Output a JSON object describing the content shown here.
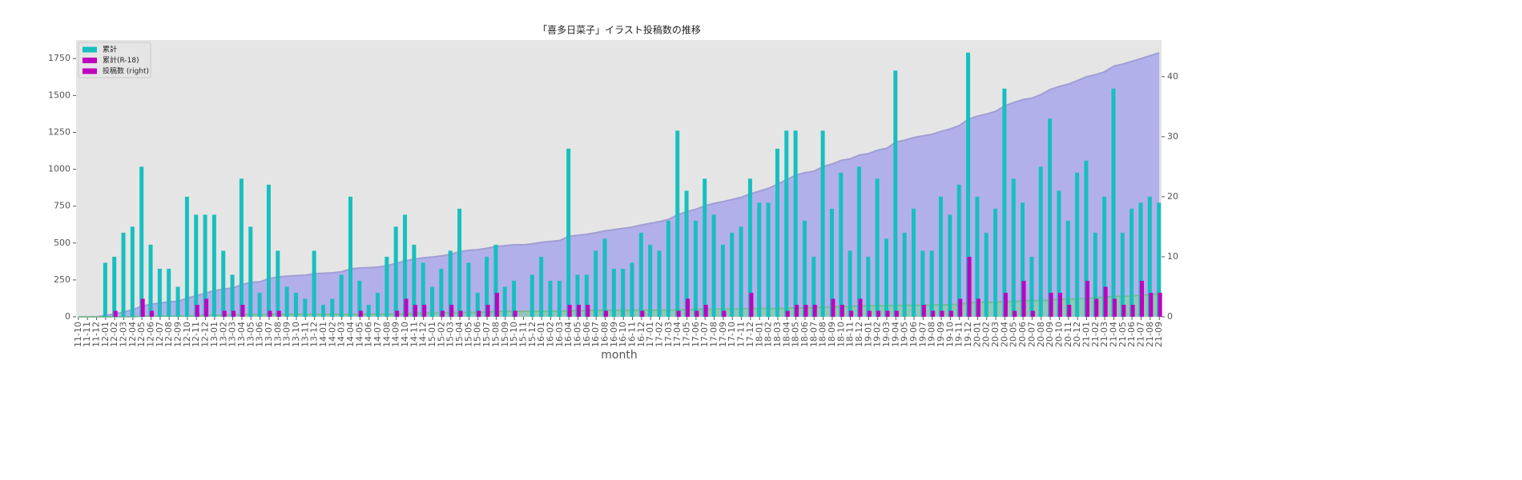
{
  "chart_data": {
    "type": "bar",
    "title": "「喜多日菜子」イラスト投稿数の推移",
    "x_label": "month",
    "categories": [
      "11-10",
      "11-11",
      "11-12",
      "12-01",
      "12-02",
      "12-03",
      "12-04",
      "12-05",
      "12-06",
      "12-07",
      "12-08",
      "12-09",
      "12-10",
      "12-11",
      "12-12",
      "13-01",
      "13-02",
      "13-03",
      "13-04",
      "13-05",
      "13-06",
      "13-07",
      "13-08",
      "13-09",
      "13-10",
      "13-11",
      "13-12",
      "14-01",
      "14-02",
      "14-03",
      "14-04",
      "14-05",
      "14-06",
      "14-07",
      "14-08",
      "14-09",
      "14-10",
      "14-11",
      "14-12",
      "15-01",
      "15-02",
      "15-03",
      "15-04",
      "15-05",
      "15-06",
      "15-07",
      "15-08",
      "15-09",
      "15-10",
      "15-11",
      "15-12",
      "16-01",
      "16-02",
      "16-03",
      "16-04",
      "16-05",
      "16-06",
      "16-07",
      "16-08",
      "16-09",
      "16-10",
      "16-11",
      "16-12",
      "17-01",
      "17-02",
      "17-03",
      "17-04",
      "17-05",
      "17-06",
      "17-07",
      "17-08",
      "17-09",
      "17-10",
      "17-11",
      "17-12",
      "18-01",
      "18-02",
      "18-03",
      "18-04",
      "18-05",
      "18-06",
      "18-07",
      "18-08",
      "18-09",
      "18-10",
      "18-11",
      "18-12",
      "19-01",
      "19-02",
      "19-03",
      "19-04",
      "19-05",
      "19-06",
      "19-07",
      "19-08",
      "19-09",
      "19-10",
      "19-11",
      "19-12",
      "20-01",
      "20-02",
      "20-03",
      "20-04",
      "20-05",
      "20-06",
      "20-07",
      "20-08",
      "20-09",
      "20-10",
      "20-11",
      "20-12",
      "21-01",
      "21-02",
      "21-03",
      "21-04",
      "21-05",
      "21-06",
      "21-07",
      "21-08",
      "21-09"
    ],
    "series": [
      {
        "kind": "area",
        "axis": "y",
        "color": "#b2b0ea",
        "values": [
          0,
          0,
          0,
          9,
          19,
          33,
          48,
          73,
          85,
          93,
          101,
          106,
          126,
          143,
          160,
          177,
          188,
          195,
          218,
          233,
          237,
          259,
          270,
          275,
          279,
          282,
          293,
          295,
          298,
          305,
          325,
          331,
          333,
          337,
          347,
          362,
          379,
          391,
          400,
          405,
          413,
          424,
          442,
          451,
          455,
          465,
          477,
          482,
          488,
          488,
          495,
          505,
          511,
          517,
          545,
          552,
          559,
          570,
          583,
          591,
          599,
          608,
          622,
          634,
          645,
          661,
          692,
          713,
          729,
          752,
          769,
          781,
          795,
          810,
          833,
          852,
          871,
          899,
          930,
          961,
          977,
          987,
          1018,
          1036,
          1060,
          1071,
          1096,
          1106,
          1129,
          1142,
          1183,
          1197,
          1215,
          1226,
          1237,
          1257,
          1274,
          1296,
          1340,
          1360,
          1374,
          1392,
          1430,
          1453,
          1472,
          1482,
          1507,
          1540,
          1561,
          1577,
          1601,
          1627,
          1641,
          1661,
          1699,
          1713,
          1731,
          1750,
          1770,
          1789
        ]
      },
      {
        "kind": "area",
        "axis": "y",
        "color": "#8ccfa4",
        "values": [
          0,
          0,
          0,
          0,
          1,
          1,
          1,
          4,
          5,
          5,
          5,
          5,
          5,
          7,
          10,
          10,
          11,
          12,
          14,
          14,
          14,
          15,
          16,
          16,
          16,
          16,
          16,
          16,
          16,
          16,
          16,
          17,
          17,
          17,
          17,
          18,
          21,
          23,
          25,
          25,
          26,
          28,
          29,
          29,
          30,
          32,
          36,
          36,
          37,
          37,
          37,
          37,
          37,
          37,
          39,
          41,
          43,
          43,
          44,
          44,
          44,
          44,
          45,
          45,
          45,
          45,
          46,
          49,
          50,
          52,
          52,
          53,
          53,
          53,
          57,
          57,
          57,
          57,
          58,
          60,
          62,
          64,
          64,
          67,
          69,
          70,
          73,
          74,
          75,
          76,
          77,
          77,
          77,
          79,
          80,
          81,
          82,
          85,
          95,
          98,
          98,
          98,
          102,
          103,
          109,
          110,
          110,
          114,
          118,
          120,
          120,
          126,
          129,
          134,
          137,
          139,
          141,
          147,
          151,
          155
        ]
      },
      {
        "kind": "bar",
        "axis": "y2",
        "color": "#17bfbf",
        "values": [
          0,
          0,
          0,
          9,
          10,
          14,
          15,
          25,
          12,
          8,
          8,
          5,
          20,
          17,
          17,
          17,
          11,
          7,
          23,
          15,
          4,
          22,
          11,
          5,
          4,
          3,
          11,
          2,
          3,
          7,
          20,
          6,
          2,
          4,
          10,
          15,
          17,
          12,
          9,
          5,
          8,
          11,
          18,
          9,
          4,
          10,
          12,
          5,
          6,
          0,
          7,
          10,
          6,
          6,
          28,
          7,
          7,
          11,
          13,
          8,
          8,
          9,
          14,
          12,
          11,
          16,
          31,
          21,
          16,
          23,
          17,
          12,
          14,
          15,
          23,
          19,
          19,
          28,
          31,
          31,
          16,
          10,
          31,
          18,
          24,
          11,
          25,
          10,
          23,
          13,
          41,
          14,
          18,
          11,
          11,
          20,
          17,
          22,
          44,
          20,
          14,
          18,
          38,
          23,
          19,
          10,
          25,
          33,
          21,
          16,
          24,
          26,
          14,
          20,
          38,
          14,
          18,
          19,
          20,
          19
        ]
      },
      {
        "kind": "bar",
        "axis": "y2",
        "color": "#bf00bf",
        "values": [
          0,
          0,
          0,
          0,
          1,
          0,
          0,
          3,
          1,
          0,
          0,
          0,
          0,
          2,
          3,
          0,
          1,
          1,
          2,
          0,
          0,
          1,
          1,
          0,
          0,
          0,
          0,
          0,
          0,
          0,
          0,
          1,
          0,
          0,
          0,
          1,
          3,
          2,
          2,
          0,
          1,
          2,
          1,
          0,
          1,
          2,
          4,
          0,
          1,
          0,
          0,
          0,
          0,
          0,
          2,
          2,
          2,
          0,
          1,
          0,
          0,
          0,
          1,
          0,
          0,
          0,
          1,
          3,
          1,
          2,
          0,
          1,
          0,
          0,
          4,
          0,
          0,
          0,
          1,
          2,
          2,
          2,
          0,
          3,
          2,
          1,
          3,
          1,
          1,
          1,
          1,
          0,
          0,
          2,
          1,
          1,
          1,
          3,
          10,
          3,
          0,
          0,
          4,
          1,
          6,
          1,
          0,
          4,
          4,
          2,
          0,
          6,
          3,
          5,
          3,
          2,
          2,
          6,
          4,
          4
        ]
      }
    ],
    "legend": {
      "loc": "upper left",
      "entries": [
        {
          "label": "累計",
          "color": "#17bfbf"
        },
        {
          "label": "累計(R-18)",
          "color": "#bf00bf"
        },
        {
          "label": "投稿数 (right)",
          "color": "#bf00bf"
        }
      ]
    },
    "ylim": [
      0,
      1876
    ],
    "yticks": [
      0,
      250,
      500,
      750,
      1000,
      1250,
      1500,
      1750
    ],
    "y2lim": [
      0,
      46.1
    ],
    "y2ticks": [
      0,
      10,
      20,
      30,
      40
    ]
  }
}
